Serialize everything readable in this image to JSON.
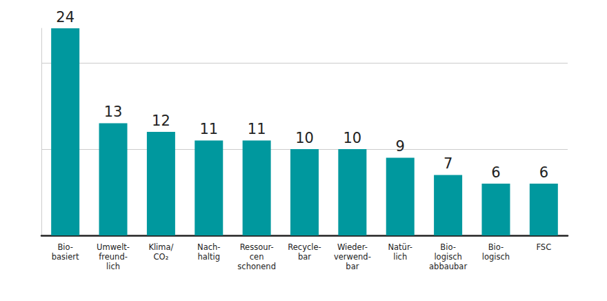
{
  "chart_data": {
    "type": "bar",
    "categories": [
      "Bio-\nbasiert",
      "Umwelt-\nfreund-\nlich",
      "Klima/\nCO₂",
      "Nach-\nhaltig",
      "Ressour-\ncen\nschonend",
      "Recycle-\nbar",
      "Wieder-\nverwend-\nbar",
      "Natür-\nlich",
      "Bio-\nlogisch\nabbaubar",
      "Bio-\nlogisch",
      "FSC"
    ],
    "values": [
      24,
      13,
      12,
      11,
      11,
      10,
      10,
      9,
      7,
      6,
      6
    ],
    "color": "#00989e",
    "ylim": [
      0,
      24
    ],
    "yticks": [
      0,
      10,
      20
    ],
    "grid": true,
    "data_labels": true,
    "tick_labels": "x"
  }
}
